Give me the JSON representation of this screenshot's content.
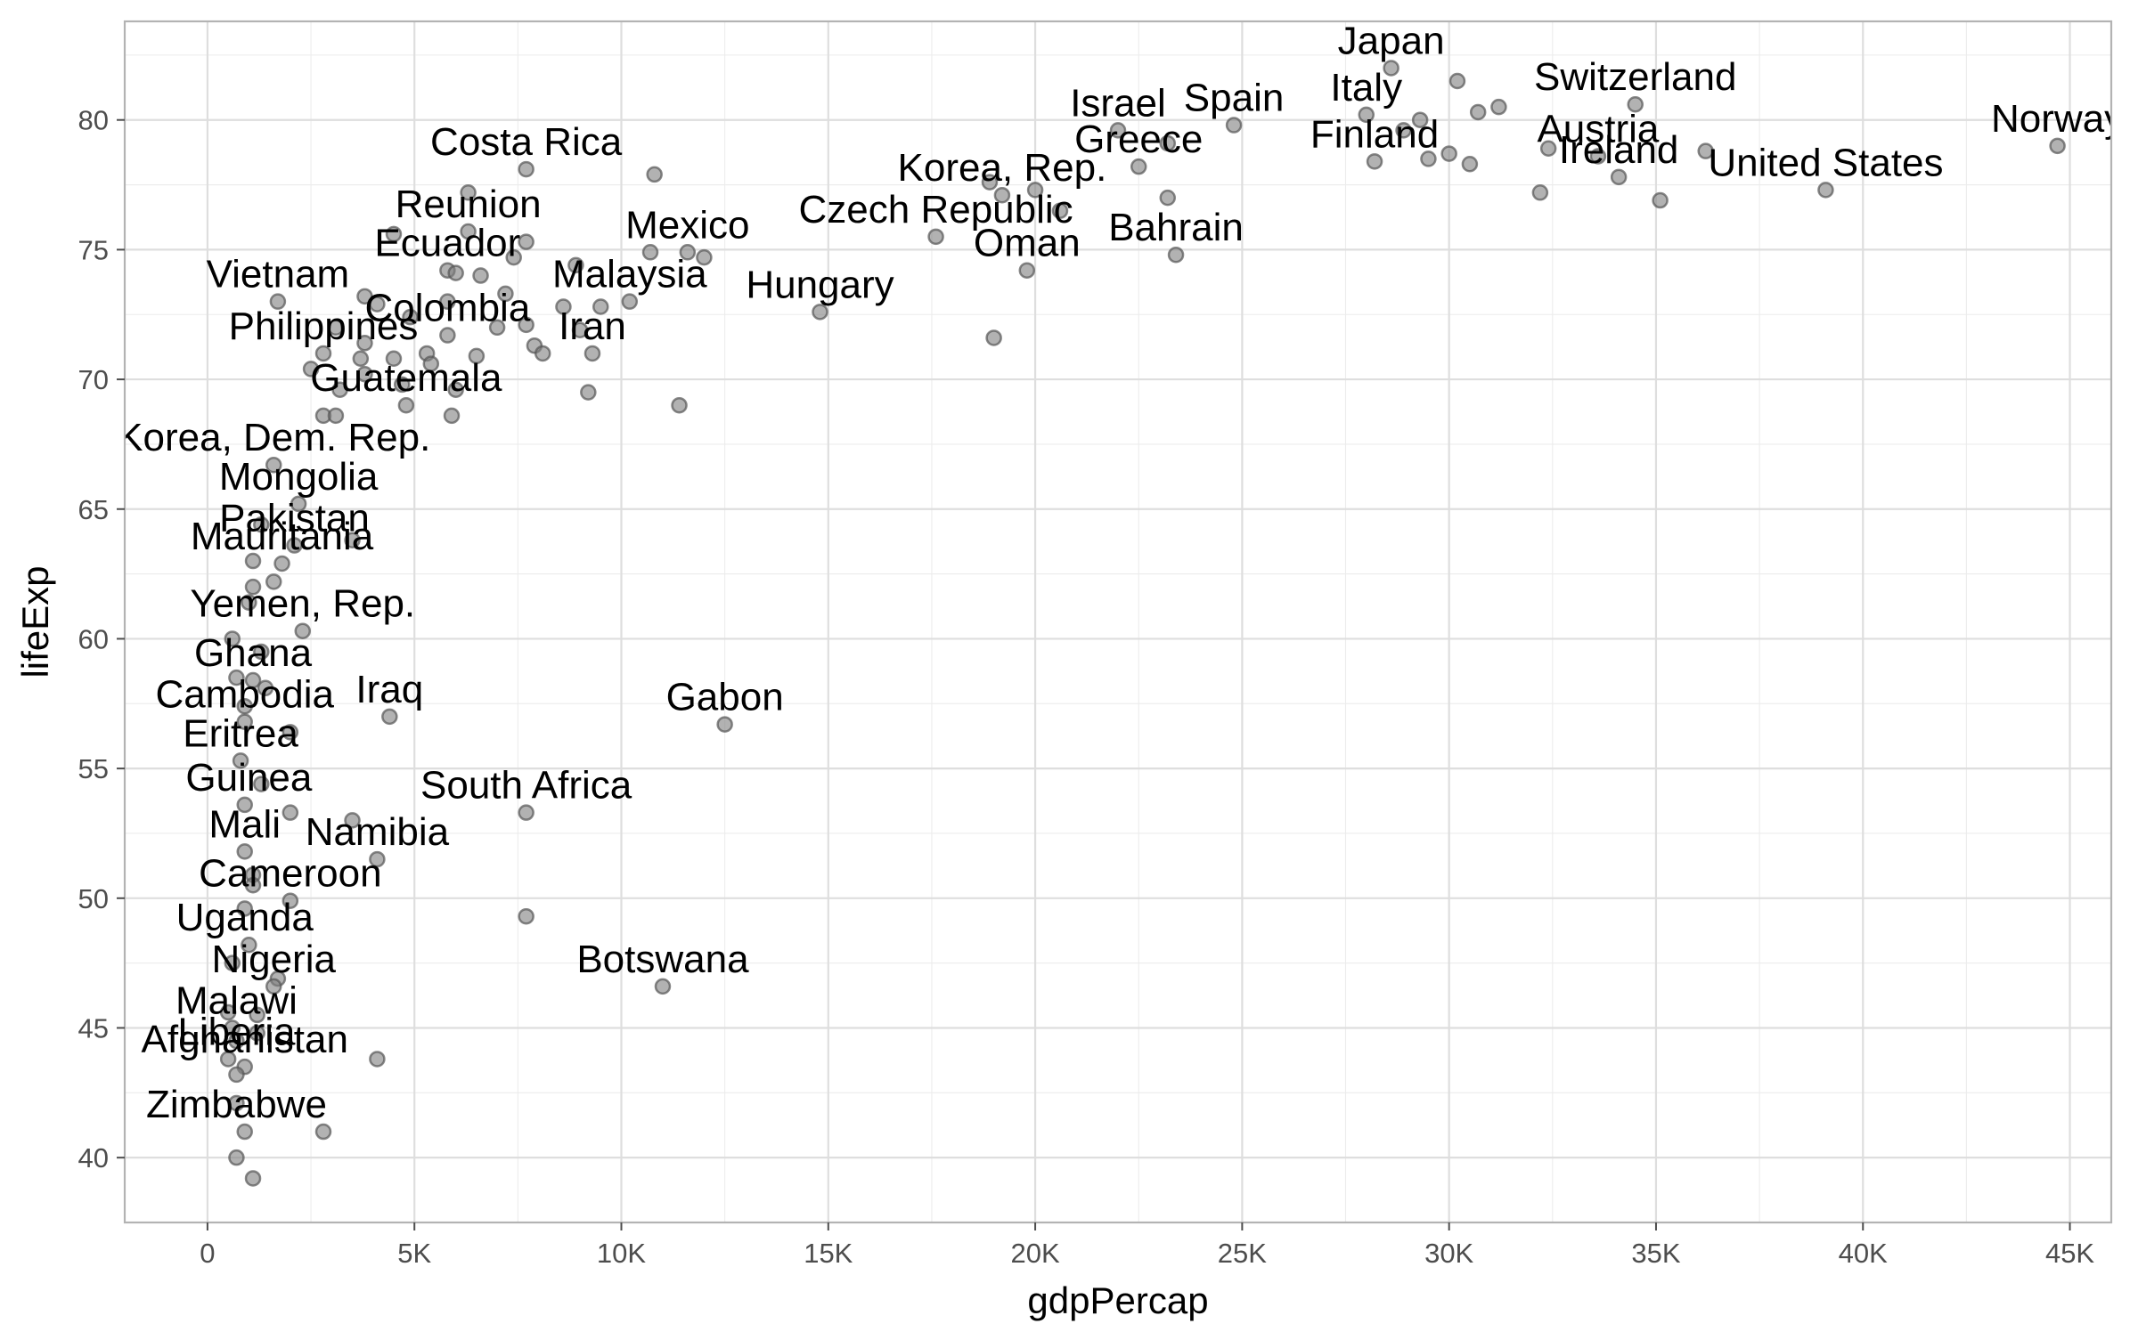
{
  "chart_data": {
    "type": "scatter",
    "xlabel": "gdpPercap",
    "ylabel": "lifeExp",
    "xlim": [
      -2000,
      46000
    ],
    "ylim": [
      37.5,
      83.8
    ],
    "x_ticks": [
      0,
      5000,
      10000,
      15000,
      20000,
      25000,
      30000,
      35000,
      40000,
      45000
    ],
    "x_tick_labels": [
      "0",
      "5K",
      "10K",
      "15K",
      "20K",
      "25K",
      "30K",
      "35K",
      "40K",
      "45K"
    ],
    "y_ticks": [
      40,
      45,
      50,
      55,
      60,
      65,
      70,
      75,
      80
    ],
    "y_tick_labels": [
      "40",
      "45",
      "50",
      "55",
      "60",
      "65",
      "70",
      "75",
      "80"
    ],
    "grid": true,
    "point_color": "#7f7f7f",
    "points": [
      [
        28600,
        82.0
      ],
      [
        30200,
        81.5
      ],
      [
        34500,
        80.6
      ],
      [
        31200,
        80.5
      ],
      [
        30700,
        80.3
      ],
      [
        28000,
        80.2
      ],
      [
        29300,
        80.0
      ],
      [
        24800,
        79.8
      ],
      [
        22000,
        79.6
      ],
      [
        28900,
        79.6
      ],
      [
        23200,
        79.1
      ],
      [
        44700,
        79.0
      ],
      [
        32400,
        78.9
      ],
      [
        36200,
        78.8
      ],
      [
        30000,
        78.7
      ],
      [
        33600,
        78.6
      ],
      [
        29500,
        78.5
      ],
      [
        28200,
        78.4
      ],
      [
        30500,
        78.3
      ],
      [
        22500,
        78.2
      ],
      [
        7700,
        78.1
      ],
      [
        10800,
        77.9
      ],
      [
        34100,
        77.8
      ],
      [
        18900,
        77.6
      ],
      [
        39100,
        77.3
      ],
      [
        20000,
        77.3
      ],
      [
        6300,
        77.2
      ],
      [
        32200,
        77.2
      ],
      [
        19200,
        77.1
      ],
      [
        23200,
        77.0
      ],
      [
        35100,
        76.9
      ],
      [
        20600,
        76.5
      ],
      [
        6300,
        75.7
      ],
      [
        17600,
        75.5
      ],
      [
        7700,
        75.3
      ],
      [
        4500,
        75.6
      ],
      [
        10700,
        74.9
      ],
      [
        11600,
        74.9
      ],
      [
        12000,
        74.7
      ],
      [
        7400,
        74.7
      ],
      [
        23400,
        74.8
      ],
      [
        8900,
        74.4
      ],
      [
        5800,
        74.2
      ],
      [
        6000,
        74.1
      ],
      [
        19800,
        74.2
      ],
      [
        6600,
        74.0
      ],
      [
        1700,
        73.0
      ],
      [
        3800,
        73.2
      ],
      [
        7200,
        73.3
      ],
      [
        5800,
        73.0
      ],
      [
        10200,
        73.0
      ],
      [
        4100,
        72.9
      ],
      [
        8600,
        72.8
      ],
      [
        9500,
        72.8
      ],
      [
        14800,
        72.6
      ],
      [
        4900,
        72.4
      ],
      [
        3100,
        72.0
      ],
      [
        7000,
        72.0
      ],
      [
        7700,
        72.1
      ],
      [
        9000,
        71.9
      ],
      [
        5800,
        71.7
      ],
      [
        19000,
        71.6
      ],
      [
        3800,
        71.4
      ],
      [
        7900,
        71.3
      ],
      [
        2800,
        71.0
      ],
      [
        8100,
        71.0
      ],
      [
        9300,
        71.0
      ],
      [
        5300,
        71.0
      ],
      [
        3700,
        70.8
      ],
      [
        6500,
        70.9
      ],
      [
        4500,
        70.8
      ],
      [
        5400,
        70.6
      ],
      [
        2500,
        70.4
      ],
      [
        3800,
        70.2
      ],
      [
        3200,
        69.6
      ],
      [
        4700,
        69.8
      ],
      [
        6000,
        69.6
      ],
      [
        9200,
        69.5
      ],
      [
        4800,
        69.0
      ],
      [
        11400,
        69.0
      ],
      [
        2800,
        68.6
      ],
      [
        3100,
        68.6
      ],
      [
        5900,
        68.6
      ],
      [
        1600,
        66.7
      ],
      [
        2200,
        65.2
      ],
      [
        3500,
        63.8
      ],
      [
        1300,
        64.4
      ],
      [
        2100,
        63.6
      ],
      [
        1100,
        63.0
      ],
      [
        1800,
        62.9
      ],
      [
        1600,
        62.2
      ],
      [
        1100,
        62.0
      ],
      [
        1000,
        61.4
      ],
      [
        2300,
        60.3
      ],
      [
        600,
        60.0
      ],
      [
        1300,
        59.5
      ],
      [
        700,
        58.5
      ],
      [
        1100,
        58.4
      ],
      [
        1400,
        58.1
      ],
      [
        900,
        57.4
      ],
      [
        4400,
        57.0
      ],
      [
        900,
        56.8
      ],
      [
        12500,
        56.7
      ],
      [
        2000,
        56.4
      ],
      [
        800,
        55.3
      ],
      [
        1300,
        54.4
      ],
      [
        900,
        53.6
      ],
      [
        7700,
        53.3
      ],
      [
        2000,
        53.3
      ],
      [
        3500,
        53.0
      ],
      [
        900,
        51.8
      ],
      [
        4100,
        51.5
      ],
      [
        1100,
        50.9
      ],
      [
        1100,
        50.5
      ],
      [
        2000,
        49.9
      ],
      [
        900,
        49.6
      ],
      [
        7700,
        49.3
      ],
      [
        1000,
        48.2
      ],
      [
        600,
        47.5
      ],
      [
        1700,
        46.9
      ],
      [
        1600,
        46.6
      ],
      [
        11000,
        46.6
      ],
      [
        500,
        45.6
      ],
      [
        1200,
        45.5
      ],
      [
        600,
        45.0
      ],
      [
        1200,
        44.8
      ],
      [
        700,
        44.5
      ],
      [
        500,
        43.8
      ],
      [
        4100,
        43.8
      ],
      [
        900,
        43.5
      ],
      [
        700,
        43.2
      ],
      [
        700,
        42.1
      ],
      [
        900,
        41.0
      ],
      [
        2800,
        41.0
      ],
      [
        700,
        40.0
      ],
      [
        1100,
        39.2
      ]
    ],
    "labels": [
      {
        "text": "Japan",
        "x": 28600,
        "y": 82.0
      },
      {
        "text": "Switzerland",
        "x": 34500,
        "y": 80.6
      },
      {
        "text": "Italy",
        "x": 28000,
        "y": 80.2
      },
      {
        "text": "Israel",
        "x": 22000,
        "y": 79.6
      },
      {
        "text": "Spain",
        "x": 24800,
        "y": 79.8
      },
      {
        "text": "Norway",
        "x": 44700,
        "y": 79.0
      },
      {
        "text": "Austria",
        "x": 33600,
        "y": 78.6
      },
      {
        "text": "Greece",
        "x": 22500,
        "y": 78.2
      },
      {
        "text": "Finland",
        "x": 28200,
        "y": 78.4
      },
      {
        "text": "Ireland",
        "x": 34100,
        "y": 77.8
      },
      {
        "text": "United States",
        "x": 39100,
        "y": 77.3
      },
      {
        "text": "Costa Rica",
        "x": 7700,
        "y": 78.1
      },
      {
        "text": "Korea, Rep.",
        "x": 19200,
        "y": 77.1
      },
      {
        "text": "Czech Republic",
        "x": 17600,
        "y": 75.5
      },
      {
        "text": "Reunion",
        "x": 6300,
        "y": 75.7
      },
      {
        "text": "Mexico",
        "x": 11600,
        "y": 74.9
      },
      {
        "text": "Bahrain",
        "x": 23400,
        "y": 74.8
      },
      {
        "text": "Oman",
        "x": 19800,
        "y": 74.2
      },
      {
        "text": "Ecuador",
        "x": 5800,
        "y": 74.2
      },
      {
        "text": "Vietnam",
        "x": 1700,
        "y": 73.0
      },
      {
        "text": "Malaysia",
        "x": 10200,
        "y": 73.0
      },
      {
        "text": "Hungary",
        "x": 14800,
        "y": 72.6
      },
      {
        "text": "Colombia",
        "x": 5800,
        "y": 71.7
      },
      {
        "text": "Philippines",
        "x": 2800,
        "y": 71.0
      },
      {
        "text": "Iran",
        "x": 9300,
        "y": 71.0
      },
      {
        "text": "Guatemala",
        "x": 4800,
        "y": 69.0
      },
      {
        "text": "Korea, Dem. Rep.",
        "x": 1600,
        "y": 66.7
      },
      {
        "text": "Mongolia",
        "x": 2200,
        "y": 65.2
      },
      {
        "text": "Pakistan",
        "x": 2100,
        "y": 63.6
      },
      {
        "text": "Mauritania",
        "x": 1800,
        "y": 62.9
      },
      {
        "text": "Yemen, Rep.",
        "x": 2300,
        "y": 60.3
      },
      {
        "text": "Ghana",
        "x": 1100,
        "y": 58.4
      },
      {
        "text": "Cambodia",
        "x": 900,
        "y": 56.8
      },
      {
        "text": "Iraq",
        "x": 4400,
        "y": 57.0
      },
      {
        "text": "Gabon",
        "x": 12500,
        "y": 56.7
      },
      {
        "text": "Eritrea",
        "x": 800,
        "y": 55.3
      },
      {
        "text": "Guinea",
        "x": 1000,
        "y": 53.6
      },
      {
        "text": "South Africa",
        "x": 7700,
        "y": 53.3
      },
      {
        "text": "Mali",
        "x": 900,
        "y": 51.8
      },
      {
        "text": "Namibia",
        "x": 4100,
        "y": 51.5
      },
      {
        "text": "Cameroon",
        "x": 2000,
        "y": 49.9
      },
      {
        "text": "Uganda",
        "x": 900,
        "y": 48.2
      },
      {
        "text": "Nigeria",
        "x": 1600,
        "y": 46.6
      },
      {
        "text": "Botswana",
        "x": 11000,
        "y": 46.6
      },
      {
        "text": "Malawi",
        "x": 700,
        "y": 45.0
      },
      {
        "text": "Liberia",
        "x": 700,
        "y": 43.8
      },
      {
        "text": "Afghanistan",
        "x": 900,
        "y": 43.5
      },
      {
        "text": "Zimbabwe",
        "x": 700,
        "y": 41.0
      }
    ]
  }
}
